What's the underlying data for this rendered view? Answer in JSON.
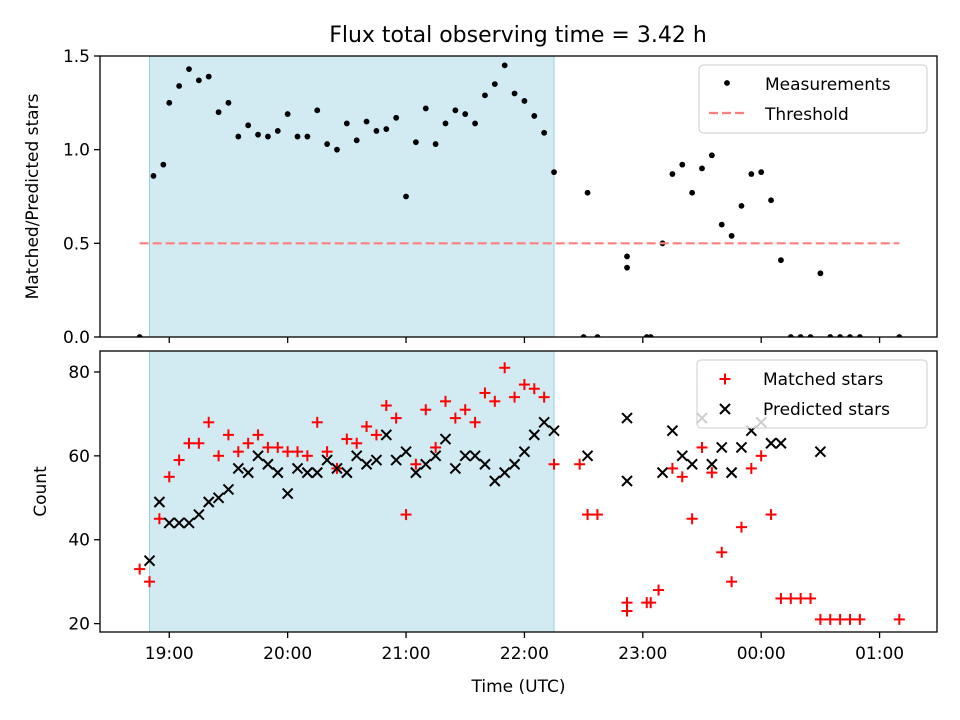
{
  "title": "Flux total observing time = 3.42 h",
  "chart_data": [
    {
      "type": "scatter",
      "ylabel": "Matched/Predicted stars",
      "ylim": [
        0,
        1.5
      ],
      "yticks": [
        "0.0",
        "0.5",
        "1.0",
        "1.5"
      ],
      "shaded_interval": [
        "18:50",
        "22:15"
      ],
      "shade_color": "#add8e6",
      "legend": {
        "position": "top-right"
      },
      "series": [
        {
          "name": "Measurements",
          "marker": "dot",
          "color": "#000000",
          "points": [
            [
              "18:45",
              0.0
            ],
            [
              "18:52",
              0.86
            ],
            [
              "18:57",
              0.92
            ],
            [
              "19:00",
              1.25
            ],
            [
              "19:05",
              1.34
            ],
            [
              "19:10",
              1.43
            ],
            [
              "19:15",
              1.37
            ],
            [
              "19:20",
              1.39
            ],
            [
              "19:25",
              1.2
            ],
            [
              "19:30",
              1.25
            ],
            [
              "19:35",
              1.07
            ],
            [
              "19:40",
              1.13
            ],
            [
              "19:45",
              1.08
            ],
            [
              "19:50",
              1.07
            ],
            [
              "19:55",
              1.1
            ],
            [
              "20:00",
              1.19
            ],
            [
              "20:05",
              1.07
            ],
            [
              "20:10",
              1.07
            ],
            [
              "20:15",
              1.21
            ],
            [
              "20:20",
              1.03
            ],
            [
              "20:25",
              1.0
            ],
            [
              "20:30",
              1.14
            ],
            [
              "20:35",
              1.05
            ],
            [
              "20:40",
              1.15
            ],
            [
              "20:45",
              1.1
            ],
            [
              "20:50",
              1.11
            ],
            [
              "20:55",
              1.17
            ],
            [
              "21:00",
              0.75
            ],
            [
              "21:05",
              1.04
            ],
            [
              "21:10",
              1.22
            ],
            [
              "21:15",
              1.03
            ],
            [
              "21:20",
              1.14
            ],
            [
              "21:25",
              1.21
            ],
            [
              "21:30",
              1.19
            ],
            [
              "21:35",
              1.14
            ],
            [
              "21:40",
              1.29
            ],
            [
              "21:45",
              1.35
            ],
            [
              "21:50",
              1.45
            ],
            [
              "21:55",
              1.3
            ],
            [
              "22:00",
              1.26
            ],
            [
              "22:05",
              1.18
            ],
            [
              "22:10",
              1.09
            ],
            [
              "22:15",
              0.88
            ],
            [
              "22:30",
              0.0
            ],
            [
              "22:32",
              0.77
            ],
            [
              "22:37",
              0.0
            ],
            [
              "22:52",
              0.43
            ],
            [
              "22:52",
              0.37
            ],
            [
              "23:02",
              0.0
            ],
            [
              "23:04",
              0.0
            ],
            [
              "23:10",
              0.5
            ],
            [
              "23:15",
              0.87
            ],
            [
              "23:20",
              0.92
            ],
            [
              "23:25",
              0.77
            ],
            [
              "23:30",
              0.9
            ],
            [
              "23:35",
              0.97
            ],
            [
              "23:40",
              0.6
            ],
            [
              "23:45",
              0.54
            ],
            [
              "23:50",
              0.7
            ],
            [
              "23:55",
              0.87
            ],
            [
              "24:00",
              0.88
            ],
            [
              "24:05",
              0.73
            ],
            [
              "24:10",
              0.41
            ],
            [
              "24:15",
              0.0
            ],
            [
              "24:20",
              0.0
            ],
            [
              "24:25",
              0.0
            ],
            [
              "24:30",
              0.34
            ],
            [
              "24:35",
              0.0
            ],
            [
              "24:40",
              0.0
            ],
            [
              "24:45",
              0.0
            ],
            [
              "24:50",
              0.0
            ],
            [
              "25:10",
              0.0
            ]
          ]
        },
        {
          "name": "Threshold",
          "marker": "dashed-line",
          "color": "#ff7f7f",
          "points": [
            [
              "18:45",
              0.5
            ],
            [
              "25:10",
              0.5
            ]
          ]
        }
      ]
    },
    {
      "type": "scatter",
      "xlabel": "Time (UTC)",
      "ylabel": "Count",
      "ylim": [
        18,
        85
      ],
      "yticks": [
        "20",
        "40",
        "60",
        "80"
      ],
      "xticks": [
        "19:00",
        "20:00",
        "21:00",
        "22:00",
        "23:00",
        "00:00",
        "01:00"
      ],
      "shaded_interval": [
        "18:50",
        "22:15"
      ],
      "shade_color": "#add8e6",
      "legend": {
        "position": "top-right"
      },
      "series": [
        {
          "name": "Matched stars",
          "marker": "plus",
          "color": "#ff0000",
          "points": [
            [
              "18:45",
              33
            ],
            [
              "18:50",
              30
            ],
            [
              "18:55",
              45
            ],
            [
              "19:00",
              55
            ],
            [
              "19:05",
              59
            ],
            [
              "19:10",
              63
            ],
            [
              "19:15",
              63
            ],
            [
              "19:20",
              68
            ],
            [
              "19:25",
              60
            ],
            [
              "19:30",
              65
            ],
            [
              "19:35",
              61
            ],
            [
              "19:40",
              63
            ],
            [
              "19:45",
              65
            ],
            [
              "19:50",
              62
            ],
            [
              "19:55",
              62
            ],
            [
              "20:00",
              61
            ],
            [
              "20:05",
              61
            ],
            [
              "20:10",
              60
            ],
            [
              "20:15",
              68
            ],
            [
              "20:20",
              61
            ],
            [
              "20:25",
              57
            ],
            [
              "20:30",
              64
            ],
            [
              "20:35",
              63
            ],
            [
              "20:40",
              67
            ],
            [
              "20:45",
              65
            ],
            [
              "20:50",
              72
            ],
            [
              "20:55",
              69
            ],
            [
              "21:00",
              46
            ],
            [
              "21:05",
              58
            ],
            [
              "21:10",
              71
            ],
            [
              "21:15",
              62
            ],
            [
              "21:20",
              73
            ],
            [
              "21:25",
              69
            ],
            [
              "21:30",
              71
            ],
            [
              "21:35",
              68
            ],
            [
              "21:40",
              75
            ],
            [
              "21:45",
              73
            ],
            [
              "21:50",
              81
            ],
            [
              "21:55",
              74
            ],
            [
              "22:00",
              77
            ],
            [
              "22:05",
              76
            ],
            [
              "22:10",
              74
            ],
            [
              "22:15",
              58
            ],
            [
              "22:28",
              58
            ],
            [
              "22:32",
              46
            ],
            [
              "22:37",
              46
            ],
            [
              "22:52",
              25
            ],
            [
              "22:52",
              23
            ],
            [
              "23:02",
              25
            ],
            [
              "23:04",
              25
            ],
            [
              "23:08",
              28
            ],
            [
              "23:15",
              57
            ],
            [
              "23:20",
              55
            ],
            [
              "23:25",
              45
            ],
            [
              "23:30",
              62
            ],
            [
              "23:35",
              56
            ],
            [
              "23:40",
              37
            ],
            [
              "23:45",
              30
            ],
            [
              "23:50",
              43
            ],
            [
              "23:55",
              57
            ],
            [
              "24:00",
              60
            ],
            [
              "24:05",
              46
            ],
            [
              "24:10",
              26
            ],
            [
              "24:15",
              26
            ],
            [
              "24:20",
              26
            ],
            [
              "24:25",
              26
            ],
            [
              "24:30",
              21
            ],
            [
              "24:35",
              21
            ],
            [
              "24:40",
              21
            ],
            [
              "24:45",
              21
            ],
            [
              "24:50",
              21
            ],
            [
              "25:10",
              21
            ]
          ]
        },
        {
          "name": "Predicted stars",
          "marker": "x",
          "color": "#000000",
          "points": [
            [
              "18:50",
              35
            ],
            [
              "18:55",
              49
            ],
            [
              "19:00",
              44
            ],
            [
              "19:05",
              44
            ],
            [
              "19:10",
              44
            ],
            [
              "19:15",
              46
            ],
            [
              "19:20",
              49
            ],
            [
              "19:25",
              50
            ],
            [
              "19:30",
              52
            ],
            [
              "19:35",
              57
            ],
            [
              "19:40",
              56
            ],
            [
              "19:45",
              60
            ],
            [
              "19:50",
              58
            ],
            [
              "19:55",
              56
            ],
            [
              "20:00",
              51
            ],
            [
              "20:05",
              57
            ],
            [
              "20:10",
              56
            ],
            [
              "20:15",
              56
            ],
            [
              "20:20",
              59
            ],
            [
              "20:25",
              57
            ],
            [
              "20:30",
              56
            ],
            [
              "20:35",
              60
            ],
            [
              "20:40",
              58
            ],
            [
              "20:45",
              59
            ],
            [
              "20:50",
              65
            ],
            [
              "20:55",
              59
            ],
            [
              "21:00",
              61
            ],
            [
              "21:05",
              56
            ],
            [
              "21:10",
              58
            ],
            [
              "21:15",
              60
            ],
            [
              "21:20",
              64
            ],
            [
              "21:25",
              57
            ],
            [
              "21:30",
              60
            ],
            [
              "21:35",
              60
            ],
            [
              "21:40",
              58
            ],
            [
              "21:45",
              54
            ],
            [
              "21:50",
              56
            ],
            [
              "21:55",
              58
            ],
            [
              "22:00",
              61
            ],
            [
              "22:05",
              65
            ],
            [
              "22:10",
              68
            ],
            [
              "22:15",
              66
            ],
            [
              "22:32",
              60
            ],
            [
              "22:52",
              69
            ],
            [
              "22:52",
              54
            ],
            [
              "23:10",
              56
            ],
            [
              "23:15",
              66
            ],
            [
              "23:20",
              60
            ],
            [
              "23:25",
              58
            ],
            [
              "23:30",
              69
            ],
            [
              "23:35",
              58
            ],
            [
              "23:40",
              62
            ],
            [
              "23:45",
              56
            ],
            [
              "23:50",
              62
            ],
            [
              "23:55",
              66
            ],
            [
              "24:00",
              68
            ],
            [
              "24:05",
              63
            ],
            [
              "24:10",
              63
            ],
            [
              "24:30",
              61
            ]
          ]
        }
      ]
    }
  ]
}
